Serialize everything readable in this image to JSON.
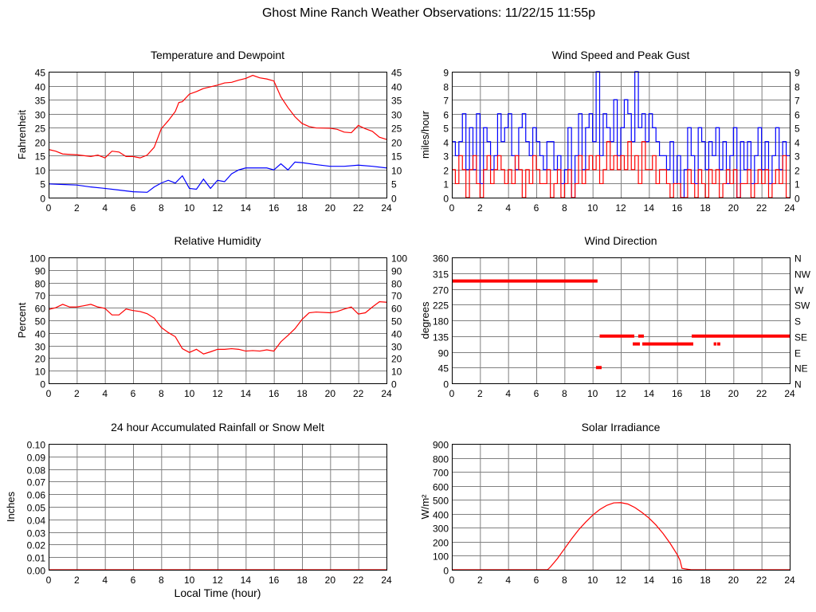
{
  "page": {
    "title": "Ghost Mine Ranch Weather Observations: 11/22/15 11:55p"
  },
  "colors": {
    "grid": "#808080",
    "border": "#000000",
    "primary_series": "#ff0000",
    "secondary_series": "#0000ff"
  },
  "chart_data": [
    {
      "type": "line",
      "title": "Temperature and Dewpoint",
      "ylabel": "Fahrenheit",
      "xlabel": "",
      "xlim": [
        0,
        24
      ],
      "ylim": [
        0,
        45
      ],
      "xticks": [
        0,
        2,
        4,
        6,
        8,
        10,
        12,
        14,
        16,
        18,
        20,
        22,
        24
      ],
      "yticks": [
        0,
        5,
        10,
        15,
        20,
        25,
        30,
        35,
        40,
        45
      ],
      "yticks_right": [
        "0",
        "5",
        "10",
        "15",
        "20",
        "25",
        "30",
        "35",
        "40",
        "45"
      ],
      "grid": true,
      "series": [
        {
          "color": "#ff0000",
          "x": [
            0,
            0.5,
            1,
            2,
            3,
            3.5,
            4,
            4.5,
            5,
            5.5,
            6,
            6.5,
            7,
            7.5,
            8,
            8.5,
            9,
            9.25,
            9.5,
            10,
            10.5,
            11,
            12,
            12.5,
            13,
            13.5,
            14,
            14.5,
            15,
            15.5,
            16,
            16.5,
            17,
            17.5,
            18,
            18.5,
            19,
            20,
            20.5,
            21,
            21.5,
            22,
            22.5,
            23,
            23.5,
            24
          ],
          "y": [
            17.2,
            16.6,
            15.6,
            15.3,
            14.7,
            15.2,
            14.2,
            16.6,
            16.3,
            14.7,
            14.7,
            14.2,
            15.2,
            18,
            24.6,
            27.5,
            30.8,
            34,
            34.3,
            37,
            37.9,
            39,
            40.2,
            41,
            41.2,
            42,
            42.6,
            43.7,
            42.8,
            42.4,
            41.7,
            36,
            32.2,
            28.9,
            26.5,
            25.4,
            24.9,
            24.8,
            24.4,
            23.4,
            23.2,
            25.8,
            24.6,
            23.7,
            21.6,
            20.8
          ]
        },
        {
          "color": "#0000ff",
          "x": [
            0,
            1,
            2,
            3,
            4,
            5,
            6,
            7,
            7.5,
            8,
            8.5,
            9,
            9.5,
            10,
            10.5,
            11,
            11.5,
            12,
            12.5,
            13,
            13.5,
            14,
            15,
            15.5,
            16,
            16.5,
            17,
            17.5,
            18,
            19,
            20,
            21,
            22,
            23,
            24
          ],
          "y": [
            4.9,
            4.7,
            4.5,
            3.8,
            3.3,
            2.7,
            2.1,
            1.9,
            3.8,
            5.2,
            6.2,
            5.2,
            7.8,
            3.3,
            3,
            6.6,
            3.3,
            6.2,
            5.7,
            8.5,
            9.9,
            10.6,
            10.6,
            10.6,
            9.9,
            12.1,
            9.9,
            12.7,
            12.5,
            11.8,
            11.2,
            11.2,
            11.6,
            11.2,
            10.6
          ]
        }
      ]
    },
    {
      "type": "line",
      "title": "Wind Speed and Peak Gust",
      "ylabel": "miles/hour",
      "xlabel": "",
      "xlim": [
        0,
        24
      ],
      "ylim": [
        0,
        9
      ],
      "xticks": [
        0,
        2,
        4,
        6,
        8,
        10,
        12,
        14,
        16,
        18,
        20,
        22,
        24
      ],
      "yticks": [
        0,
        1,
        2,
        3,
        4,
        5,
        6,
        7,
        8,
        9
      ],
      "yticks_right": [
        "0",
        "1",
        "2",
        "3",
        "4",
        "5",
        "6",
        "7",
        "8",
        "9"
      ],
      "grid": true,
      "step": true,
      "series": [
        {
          "color": "#0000ff",
          "y": [
            4,
            3,
            4,
            6,
            2,
            5,
            2,
            6,
            1,
            5,
            4,
            2,
            3,
            6,
            4,
            5,
            6,
            3,
            2,
            5,
            6,
            4,
            3,
            5,
            4,
            3,
            2,
            4,
            4,
            2,
            3,
            1,
            2,
            5,
            0,
            3,
            6,
            2,
            5,
            6,
            4,
            9,
            3,
            6,
            5,
            4,
            7,
            3,
            5,
            7,
            6,
            4,
            9,
            5,
            6,
            4,
            6,
            5,
            4,
            3,
            3,
            2,
            4,
            1,
            3,
            0,
            2,
            5,
            3,
            1,
            5,
            4,
            2,
            4,
            3,
            5,
            2,
            4,
            1,
            3,
            5,
            0,
            4,
            2,
            4,
            1,
            3,
            5,
            2,
            4,
            1,
            3,
            5,
            2,
            4,
            3
          ]
        },
        {
          "color": "#ff0000",
          "y": [
            2,
            1,
            3,
            2,
            0,
            2,
            3,
            1,
            0,
            2,
            3,
            1,
            2,
            3,
            2,
            1,
            2,
            1,
            3,
            2,
            0,
            2,
            1,
            3,
            2,
            1,
            1,
            2,
            0,
            1,
            2,
            0,
            1,
            2,
            0,
            1,
            3,
            1,
            2,
            3,
            2,
            3,
            1,
            2,
            4,
            2,
            3,
            2,
            3,
            2,
            4,
            2,
            3,
            1,
            4,
            2,
            2,
            3,
            1,
            2,
            2,
            1,
            0,
            1,
            1,
            0,
            0,
            2,
            1,
            0,
            2,
            1,
            0,
            2,
            1,
            2,
            0,
            1,
            2,
            1,
            2,
            0,
            1,
            1,
            2,
            0,
            1,
            2,
            1,
            2,
            0,
            1,
            2,
            1,
            3,
            0
          ]
        }
      ]
    },
    {
      "type": "line",
      "title": "Relative Humidity",
      "ylabel": "Percent",
      "xlabel": "",
      "xlim": [
        0,
        24
      ],
      "ylim": [
        0,
        100
      ],
      "xticks": [
        0,
        2,
        4,
        6,
        8,
        10,
        12,
        14,
        16,
        18,
        20,
        22,
        24
      ],
      "yticks": [
        0,
        10,
        20,
        30,
        40,
        50,
        60,
        70,
        80,
        90,
        100
      ],
      "yticks_right": [
        "0",
        "10",
        "20",
        "30",
        "40",
        "50",
        "60",
        "70",
        "80",
        "90",
        "100"
      ],
      "grid": true,
      "series": [
        {
          "color": "#ff0000",
          "x": [
            0,
            0.5,
            1,
            1.5,
            2,
            2.5,
            3,
            3.5,
            4,
            4.5,
            5,
            5.5,
            6,
            6.5,
            7,
            7.5,
            8,
            8.5,
            9,
            9.5,
            10,
            10.5,
            11,
            11.5,
            12,
            12.5,
            13,
            13.5,
            14,
            14.5,
            15,
            15.5,
            16,
            16.5,
            17,
            17.5,
            18,
            18.5,
            19,
            20,
            20.5,
            21,
            21.5,
            22,
            22.5,
            23,
            23.5,
            24
          ],
          "y": [
            58.7,
            60,
            62.7,
            60.6,
            60.6,
            61.6,
            62.7,
            60.6,
            59.5,
            54.3,
            54.3,
            59,
            57.8,
            57,
            55.3,
            51.8,
            44.4,
            40.3,
            37,
            27.5,
            24.5,
            27,
            23.3,
            25,
            27,
            27,
            27.5,
            27,
            25.6,
            26,
            25.6,
            26.6,
            25.6,
            33,
            38,
            43.4,
            50.7,
            56,
            56.6,
            56,
            57,
            59,
            60.6,
            55,
            56,
            60.6,
            64.8,
            64.4
          ]
        }
      ]
    },
    {
      "type": "segments",
      "title": "Wind Direction",
      "ylabel": "degrees",
      "xlabel": "",
      "xlim": [
        0,
        24
      ],
      "ylim": [
        0,
        360
      ],
      "xticks": [
        0,
        2,
        4,
        6,
        8,
        10,
        12,
        14,
        16,
        18,
        20,
        22,
        24
      ],
      "yticks": [
        0,
        45,
        90,
        135,
        180,
        225,
        270,
        315,
        360
      ],
      "yticks_right": [
        "N",
        "NE",
        "E",
        "SE",
        "S",
        "SW",
        "W",
        "NW",
        "N"
      ],
      "grid": true,
      "series": [
        {
          "color": "#ff0000",
          "segments": [
            {
              "y": 292.5,
              "x": [
                0,
                10.35
              ]
            },
            {
              "y": 45,
              "x": [
                10.24,
                10.64
              ]
            },
            {
              "y": 135,
              "x": [
                10.5,
                12.96
              ]
            },
            {
              "y": 112.5,
              "x": [
                12.85,
                13.36
              ]
            },
            {
              "y": 135,
              "x": [
                13.24,
                13.64
              ]
            },
            {
              "y": 112.5,
              "x": [
                13.53,
                17.15
              ]
            },
            {
              "y": 135,
              "x": [
                17.04,
                24
              ]
            },
            {
              "y": 112.5,
              "x": [
                18.6,
                18.8
              ]
            },
            {
              "y": 112.5,
              "x": [
                18.85,
                19.07
              ]
            }
          ]
        }
      ]
    },
    {
      "type": "line",
      "title": "24 hour Accumulated Rainfall or Snow Melt",
      "ylabel": "Inches",
      "xlabel": "Local Time (hour)",
      "xlim": [
        0,
        24
      ],
      "ylim": [
        0,
        0.1
      ],
      "xticks": [
        0,
        2,
        4,
        6,
        8,
        10,
        12,
        14,
        16,
        18,
        20,
        22,
        24
      ],
      "yticks": [
        "0.00",
        "0.01",
        "0.02",
        "0.03",
        "0.04",
        "0.05",
        "0.06",
        "0.07",
        "0.08",
        "0.09",
        "0.10"
      ],
      "grid": true,
      "series": [
        {
          "color": "#ff0000",
          "x": [
            0,
            24
          ],
          "y": [
            0,
            0
          ]
        }
      ]
    },
    {
      "type": "line",
      "title": "Solar Irradiance",
      "ylabel": "W/m²",
      "xlabel": "",
      "xlim": [
        0,
        24
      ],
      "ylim": [
        0,
        900
      ],
      "xticks": [
        0,
        2,
        4,
        6,
        8,
        10,
        12,
        14,
        16,
        18,
        20,
        22,
        24
      ],
      "yticks": [
        0,
        100,
        200,
        300,
        400,
        500,
        600,
        700,
        800,
        900
      ],
      "grid": true,
      "series": [
        {
          "color": "#ff0000",
          "x": [
            0,
            6.8,
            7,
            7.5,
            8,
            8.5,
            9,
            9.5,
            10,
            10.5,
            11,
            11.5,
            12,
            12.5,
            13,
            13.5,
            14,
            14.5,
            15,
            15.5,
            16,
            16.2,
            16.35,
            16.8,
            17,
            24
          ],
          "y": [
            0,
            0,
            20,
            80,
            150,
            220,
            285,
            340,
            390,
            430,
            460,
            478,
            480,
            470,
            445,
            410,
            370,
            320,
            260,
            190,
            110,
            70,
            10,
            3,
            0,
            0
          ]
        }
      ]
    }
  ]
}
